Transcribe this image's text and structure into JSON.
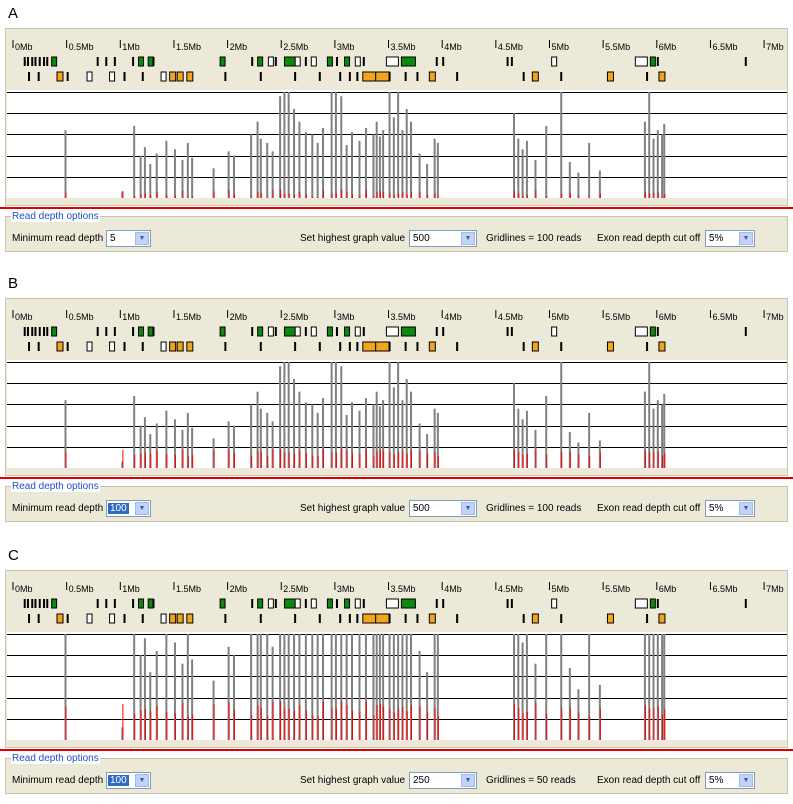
{
  "colors": {
    "accent_red": "#e00000",
    "bar_gray": "#808080",
    "bar_red": "#ff0000",
    "exon_green": "#008000",
    "exon_orange": "#f0a000",
    "link_blue": "#1f4fc9"
  },
  "axis": {
    "tick_labels": [
      "0Mb",
      "0.5Mb",
      "1Mb",
      "1.5Mb",
      "2Mb",
      "2.5Mb",
      "3Mb",
      "3.5Mb",
      "4Mb",
      "4.5Mb",
      "5Mb",
      "5.5Mb",
      "6Mb",
      "6.5Mb",
      "7Mb"
    ],
    "ticks_mb": [
      0,
      0.5,
      1,
      1.5,
      2,
      2.5,
      3,
      3.5,
      4,
      4.5,
      5,
      5.5,
      6,
      6.5,
      7
    ]
  },
  "panels": [
    {
      "letter": "A",
      "options": {
        "title": "Read depth options",
        "min_depth_label": "Minimum read depth",
        "min_depth_value": "5",
        "min_depth_highlighted": false,
        "highest_label": "Set highest graph value",
        "highest_value": "500",
        "gridlines_text": "Gridlines = 100 reads",
        "cutoff_label": "Exon read depth cut off",
        "cutoff_value": "5%"
      },
      "graph": {
        "max": 500,
        "gridline_step": 100,
        "min_depth": 5
      }
    },
    {
      "letter": "B",
      "options": {
        "title": "Read depth options",
        "min_depth_label": "Minimum read depth",
        "min_depth_value": "100",
        "min_depth_highlighted": true,
        "highest_label": "Set highest graph value",
        "highest_value": "500",
        "gridlines_text": "Gridlines = 100 reads",
        "cutoff_label": "Exon read depth cut off",
        "cutoff_value": "5%"
      },
      "graph": {
        "max": 500,
        "gridline_step": 100,
        "min_depth": 100
      }
    },
    {
      "letter": "C",
      "options": {
        "title": "Read depth options",
        "min_depth_label": "Minimum read depth",
        "min_depth_value": "100",
        "min_depth_highlighted": true,
        "highest_label": "Set highest graph value",
        "highest_value": "250",
        "gridlines_text": "Gridlines = 50 reads",
        "cutoff_label": "Exon read depth cut off",
        "cutoff_value": "5%"
      },
      "graph": {
        "max": 250,
        "gridline_step": 50,
        "min_depth": 100
      }
    }
  ],
  "genes_row1": [
    {
      "mb": 0.1,
      "t": "b"
    },
    {
      "mb": 0.13,
      "t": "b"
    },
    {
      "mb": 0.17,
      "t": "b"
    },
    {
      "mb": 0.2,
      "t": "b"
    },
    {
      "mb": 0.24,
      "t": "b"
    },
    {
      "mb": 0.28,
      "t": "b"
    },
    {
      "mb": 0.31,
      "t": "b"
    },
    {
      "mb": 0.36,
      "t": "g"
    },
    {
      "mb": 0.78,
      "t": "b"
    },
    {
      "mb": 0.86,
      "t": "b"
    },
    {
      "mb": 0.94,
      "t": "b"
    },
    {
      "mb": 1.11,
      "t": "b"
    },
    {
      "mb": 1.17,
      "t": "g"
    },
    {
      "mb": 1.26,
      "t": "g"
    },
    {
      "mb": 1.3,
      "t": "b"
    },
    {
      "mb": 1.93,
      "t": "g"
    },
    {
      "mb": 2.22,
      "t": "b"
    },
    {
      "mb": 2.28,
      "t": "g"
    },
    {
      "mb": 2.38,
      "t": "w"
    },
    {
      "mb": 2.44,
      "t": "b"
    },
    {
      "mb": 2.53,
      "t": "G"
    },
    {
      "mb": 2.63,
      "t": "w"
    },
    {
      "mb": 2.72,
      "t": "b"
    },
    {
      "mb": 2.78,
      "t": "w"
    },
    {
      "mb": 2.93,
      "t": "g"
    },
    {
      "mb": 3.01,
      "t": "b"
    },
    {
      "mb": 3.09,
      "t": "g"
    },
    {
      "mb": 3.19,
      "t": "w"
    },
    {
      "mb": 3.26,
      "t": "b"
    },
    {
      "mb": 3.48,
      "t": "W"
    },
    {
      "mb": 3.62,
      "t": "G"
    },
    {
      "mb": 3.94,
      "t": "b"
    },
    {
      "mb": 4.0,
      "t": "b"
    },
    {
      "mb": 4.6,
      "t": "b"
    },
    {
      "mb": 4.64,
      "t": "b"
    },
    {
      "mb": 5.02,
      "t": "w"
    },
    {
      "mb": 5.8,
      "t": "W"
    },
    {
      "mb": 5.94,
      "t": "g"
    },
    {
      "mb": 6.0,
      "t": "b"
    },
    {
      "mb": 6.82,
      "t": "b"
    }
  ],
  "genes_row2": [
    {
      "mb": 0.14,
      "t": "b"
    },
    {
      "mb": 0.23,
      "t": "b"
    },
    {
      "mb": 0.41,
      "t": "o"
    },
    {
      "mb": 0.5,
      "t": "b"
    },
    {
      "mb": 0.69,
      "t": "w"
    },
    {
      "mb": 0.9,
      "t": "w"
    },
    {
      "mb": 1.03,
      "t": "b"
    },
    {
      "mb": 1.2,
      "t": "b"
    },
    {
      "mb": 1.38,
      "t": "w"
    },
    {
      "mb": 1.46,
      "t": "o"
    },
    {
      "mb": 1.53,
      "t": "o"
    },
    {
      "mb": 1.62,
      "t": "o"
    },
    {
      "mb": 1.97,
      "t": "b"
    },
    {
      "mb": 2.3,
      "t": "b"
    },
    {
      "mb": 2.62,
      "t": "b"
    },
    {
      "mb": 2.85,
      "t": "b"
    },
    {
      "mb": 3.04,
      "t": "b"
    },
    {
      "mb": 3.13,
      "t": "b"
    },
    {
      "mb": 3.2,
      "t": "b"
    },
    {
      "mb": 3.26,
      "t": "O"
    },
    {
      "mb": 3.38,
      "t": "O"
    },
    {
      "mb": 3.5,
      "t": "b"
    },
    {
      "mb": 3.65,
      "t": "b"
    },
    {
      "mb": 3.76,
      "t": "b"
    },
    {
      "mb": 3.88,
      "t": "o"
    },
    {
      "mb": 4.13,
      "t": "b"
    },
    {
      "mb": 4.75,
      "t": "b"
    },
    {
      "mb": 4.84,
      "t": "o"
    },
    {
      "mb": 5.1,
      "t": "b"
    },
    {
      "mb": 5.54,
      "t": "o"
    },
    {
      "mb": 5.9,
      "t": "b"
    },
    {
      "mb": 6.02,
      "t": "o"
    }
  ],
  "coverage_peaks": [
    {
      "mb": 0.48,
      "d": 320
    },
    {
      "mb": 1.01,
      "d": 30
    },
    {
      "mb": 1.12,
      "d": 340
    },
    {
      "mb": 1.18,
      "d": 200
    },
    {
      "mb": 1.22,
      "d": 240
    },
    {
      "mb": 1.27,
      "d": 160
    },
    {
      "mb": 1.33,
      "d": 210
    },
    {
      "mb": 1.42,
      "d": 270
    },
    {
      "mb": 1.5,
      "d": 230
    },
    {
      "mb": 1.57,
      "d": 180
    },
    {
      "mb": 1.62,
      "d": 260
    },
    {
      "mb": 1.66,
      "d": 190
    },
    {
      "mb": 1.86,
      "d": 140
    },
    {
      "mb": 2.0,
      "d": 220
    },
    {
      "mb": 2.05,
      "d": 200
    },
    {
      "mb": 2.21,
      "d": 300
    },
    {
      "mb": 2.27,
      "d": 360
    },
    {
      "mb": 2.3,
      "d": 280
    },
    {
      "mb": 2.36,
      "d": 260
    },
    {
      "mb": 2.41,
      "d": 220
    },
    {
      "mb": 2.48,
      "d": 480
    },
    {
      "mb": 2.52,
      "d": 500
    },
    {
      "mb": 2.56,
      "d": 500
    },
    {
      "mb": 2.61,
      "d": 420
    },
    {
      "mb": 2.66,
      "d": 360
    },
    {
      "mb": 2.72,
      "d": 310
    },
    {
      "mb": 2.78,
      "d": 300
    },
    {
      "mb": 2.83,
      "d": 260
    },
    {
      "mb": 2.88,
      "d": 330
    },
    {
      "mb": 2.96,
      "d": 500
    },
    {
      "mb": 3.0,
      "d": 500
    },
    {
      "mb": 3.05,
      "d": 480
    },
    {
      "mb": 3.1,
      "d": 250
    },
    {
      "mb": 3.15,
      "d": 310
    },
    {
      "mb": 3.22,
      "d": 270
    },
    {
      "mb": 3.28,
      "d": 330
    },
    {
      "mb": 3.35,
      "d": 300
    },
    {
      "mb": 3.38,
      "d": 360
    },
    {
      "mb": 3.41,
      "d": 290
    },
    {
      "mb": 3.44,
      "d": 320
    },
    {
      "mb": 3.5,
      "d": 500
    },
    {
      "mb": 3.54,
      "d": 380
    },
    {
      "mb": 3.58,
      "d": 500
    },
    {
      "mb": 3.62,
      "d": 320
    },
    {
      "mb": 3.66,
      "d": 420
    },
    {
      "mb": 3.7,
      "d": 360
    },
    {
      "mb": 3.78,
      "d": 210
    },
    {
      "mb": 3.85,
      "d": 160
    },
    {
      "mb": 3.92,
      "d": 280
    },
    {
      "mb": 3.95,
      "d": 260
    },
    {
      "mb": 4.66,
      "d": 400
    },
    {
      "mb": 4.7,
      "d": 280
    },
    {
      "mb": 4.74,
      "d": 230
    },
    {
      "mb": 4.78,
      "d": 270
    },
    {
      "mb": 4.86,
      "d": 180
    },
    {
      "mb": 4.96,
      "d": 340
    },
    {
      "mb": 5.1,
      "d": 500
    },
    {
      "mb": 5.18,
      "d": 170
    },
    {
      "mb": 5.26,
      "d": 120
    },
    {
      "mb": 5.36,
      "d": 260
    },
    {
      "mb": 5.46,
      "d": 130
    },
    {
      "mb": 5.88,
      "d": 360
    },
    {
      "mb": 5.92,
      "d": 500
    },
    {
      "mb": 5.96,
      "d": 280
    },
    {
      "mb": 6.0,
      "d": 320
    },
    {
      "mb": 6.04,
      "d": 300
    },
    {
      "mb": 6.06,
      "d": 350
    }
  ]
}
